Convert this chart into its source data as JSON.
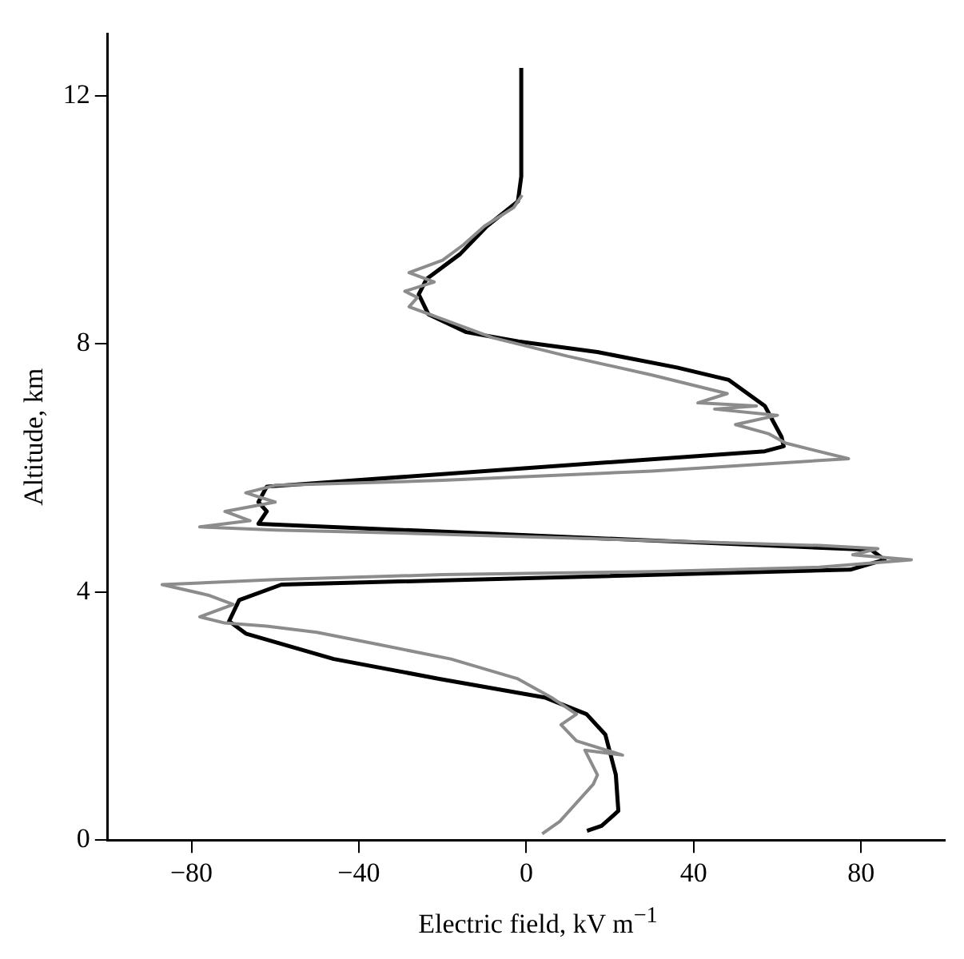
{
  "chart_data": {
    "type": "line",
    "xlabel": "Electric field, kV m$^{−1}$",
    "ylabel": "Altitude, km",
    "xlim": [
      -100,
      100
    ],
    "ylim": [
      0,
      13
    ],
    "xticks": [
      {
        "value": -80,
        "label": "−80"
      },
      {
        "value": -40,
        "label": "−40"
      },
      0,
      40,
      80
    ],
    "yticks": [
      0,
      4,
      8,
      12
    ],
    "grid": false,
    "legend": false,
    "marker": "none",
    "line_style": "solid",
    "series": [
      {
        "color": "#8c8c8c",
        "x": [
          3.8,
          8,
          12,
          16,
          17,
          14,
          23,
          12,
          8.3,
          12,
          6,
          -2,
          -18,
          -35,
          -50,
          -62,
          -72,
          -78,
          -70,
          -76,
          -87,
          -60,
          -20,
          30,
          70,
          92,
          78,
          84,
          70,
          20,
          -30,
          -60,
          -78,
          -66,
          -72,
          -60,
          -67,
          -60,
          -20,
          30,
          77,
          62,
          58,
          50,
          60,
          45,
          55,
          41,
          48,
          30,
          10,
          -8,
          -20,
          -28,
          -26,
          -29,
          -22,
          -28,
          -20,
          -15,
          -10,
          -3,
          -1
        ],
        "values": [
          0.1,
          0.3,
          0.6,
          0.9,
          1.05,
          1.45,
          1.37,
          1.6,
          1.86,
          2.03,
          2.3,
          2.6,
          2.92,
          3.15,
          3.35,
          3.45,
          3.5,
          3.6,
          3.8,
          3.95,
          4.12,
          4.2,
          4.28,
          4.33,
          4.4,
          4.52,
          4.6,
          4.7,
          4.75,
          4.85,
          4.95,
          5.0,
          5.05,
          5.15,
          5.3,
          5.45,
          5.6,
          5.72,
          5.8,
          5.95,
          6.15,
          6.4,
          6.55,
          6.7,
          6.85,
          6.95,
          7.0,
          7.05,
          7.2,
          7.5,
          7.8,
          8.1,
          8.4,
          8.6,
          8.75,
          8.85,
          9.0,
          9.15,
          9.35,
          9.6,
          9.9,
          10.2,
          10.4
        ]
      },
      {
        "color": "#000000",
        "x": [
          14.5,
          18,
          22,
          21.4,
          18.9,
          14.4,
          4.4,
          -20.8,
          -46,
          -67,
          -71,
          -68.6,
          -58.5,
          77.4,
          85.6,
          82.4,
          -64,
          -62,
          -64,
          -62,
          57,
          61.5,
          61,
          57,
          48.4,
          36,
          17,
          -1.9,
          -14.3,
          -23.4,
          -25.7,
          -23.8,
          -15.8,
          -9.4,
          -2,
          -1.2,
          -1.2
        ],
        "values": [
          0.15,
          0.23,
          0.47,
          1.05,
          1.7,
          2.03,
          2.3,
          2.6,
          2.92,
          3.33,
          3.53,
          3.87,
          4.12,
          4.36,
          4.52,
          4.68,
          5.1,
          5.3,
          5.45,
          5.7,
          6.27,
          6.35,
          6.5,
          7.0,
          7.42,
          7.62,
          7.87,
          8.04,
          8.19,
          8.48,
          8.8,
          9.05,
          9.45,
          9.9,
          10.3,
          10.7,
          12.45
        ]
      }
    ]
  }
}
